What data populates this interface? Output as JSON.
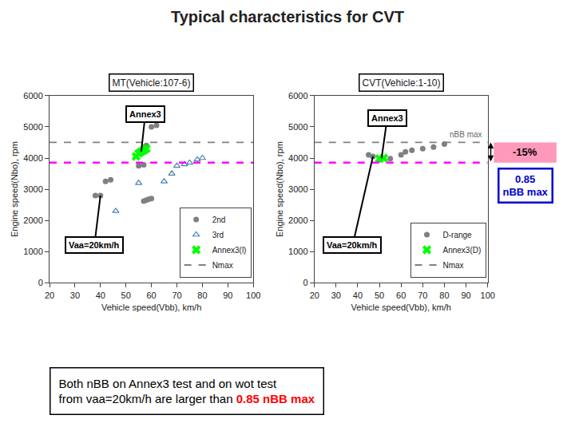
{
  "title": "Typical characteristics for CVT",
  "chart_data": [
    {
      "type": "scatter",
      "title": "MT(Vehicle:107-6)",
      "x_label": "Vehicle speed(Vbb), km/h",
      "y_label": "Engine speed(Nbo), rpm",
      "xlim": [
        20,
        100
      ],
      "ylim": [
        0,
        6000
      ],
      "xticks": [
        20,
        30,
        40,
        50,
        60,
        70,
        80,
        90,
        100
      ],
      "yticks": [
        0,
        1000,
        2000,
        3000,
        4000,
        5000,
        6000
      ],
      "grid": false,
      "legend": "lower right",
      "series": [
        {
          "name": "2nd",
          "color": "gray",
          "marker": "circle",
          "x": [
            38,
            40,
            42,
            44,
            55,
            57,
            57,
            58,
            60,
            62,
            57,
            58,
            59,
            60
          ],
          "values": [
            2800,
            2800,
            3250,
            3300,
            3750,
            3780,
            4350,
            4400,
            5000,
            5050,
            2620,
            2650,
            2680,
            2700
          ]
        },
        {
          "name": "3rd",
          "color": "steelblue",
          "marker": "triangle-open",
          "x": [
            46,
            55,
            65,
            68,
            70,
            73,
            75,
            78,
            80
          ],
          "values": [
            2300,
            3200,
            3250,
            3500,
            3750,
            3800,
            3850,
            3950,
            4000
          ]
        },
        {
          "name": "Annex3(l)",
          "color": "lime",
          "marker": "x",
          "x": [
            54,
            55,
            56,
            57,
            58
          ],
          "values": [
            4050,
            4150,
            4200,
            4250,
            4300
          ]
        }
      ],
      "reference_lines": [
        {
          "name": "Nmax",
          "value": 4500,
          "color": "gray",
          "line_style": "dashed"
        },
        {
          "value": 3850,
          "color": "magenta",
          "line_style": "dashed"
        }
      ],
      "annotations": [
        {
          "text": "Annex3",
          "x": 56,
          "y": 4200
        },
        {
          "text": "Vaa=20km/h",
          "x": 40,
          "y": 2800
        }
      ]
    },
    {
      "type": "scatter",
      "title": "CVT(Vehicle:1-10)",
      "x_label": "Vehicle speed(Vbb), km/h",
      "y_label": "Engine speed(Nbo), rpm",
      "xlim": [
        20,
        100
      ],
      "ylim": [
        0,
        6000
      ],
      "xticks": [
        20,
        30,
        40,
        50,
        60,
        70,
        80,
        90,
        100
      ],
      "yticks": [
        0,
        1000,
        2000,
        3000,
        4000,
        5000,
        6000
      ],
      "grid": false,
      "legend": "lower right",
      "series": [
        {
          "name": "D-range",
          "color": "gray",
          "marker": "circle",
          "x": [
            45,
            47,
            50,
            55,
            60,
            62,
            65,
            70,
            75,
            80
          ],
          "values": [
            4100,
            4050,
            3950,
            3980,
            4100,
            4200,
            4250,
            4300,
            4350,
            4450
          ]
        },
        {
          "name": "Annex3(D)",
          "color": "lime",
          "marker": "x",
          "x": [
            50,
            52
          ],
          "values": [
            3980,
            4000
          ]
        }
      ],
      "reference_lines": [
        {
          "name": "Nmax",
          "value": 4500,
          "color": "gray",
          "line_style": "dashed",
          "label": "nBB max",
          "label_color": "dimgray"
        },
        {
          "value": 3850,
          "color": "magenta",
          "line_style": "dashed"
        }
      ],
      "annotations": [
        {
          "text": "Annex3",
          "x": 51,
          "y": 3990
        },
        {
          "text": "Vaa=20km/h",
          "x": 47,
          "y": 4050
        }
      ],
      "band": {
        "text": "-15%",
        "from": 3850,
        "to": 4500,
        "color": "#ff99bb"
      },
      "side_note": {
        "lines": [
          "0.85",
          "nBB max"
        ],
        "y": 3850,
        "color": "#0000cd"
      }
    }
  ],
  "note": {
    "lines": [
      [
        {
          "text": "Both nBB on Annex3 test and on wot test"
        }
      ],
      [
        {
          "text": "from vaa=20km/h are larger than "
        },
        {
          "text": "0.85 nBB max",
          "color": "red"
        }
      ]
    ]
  }
}
